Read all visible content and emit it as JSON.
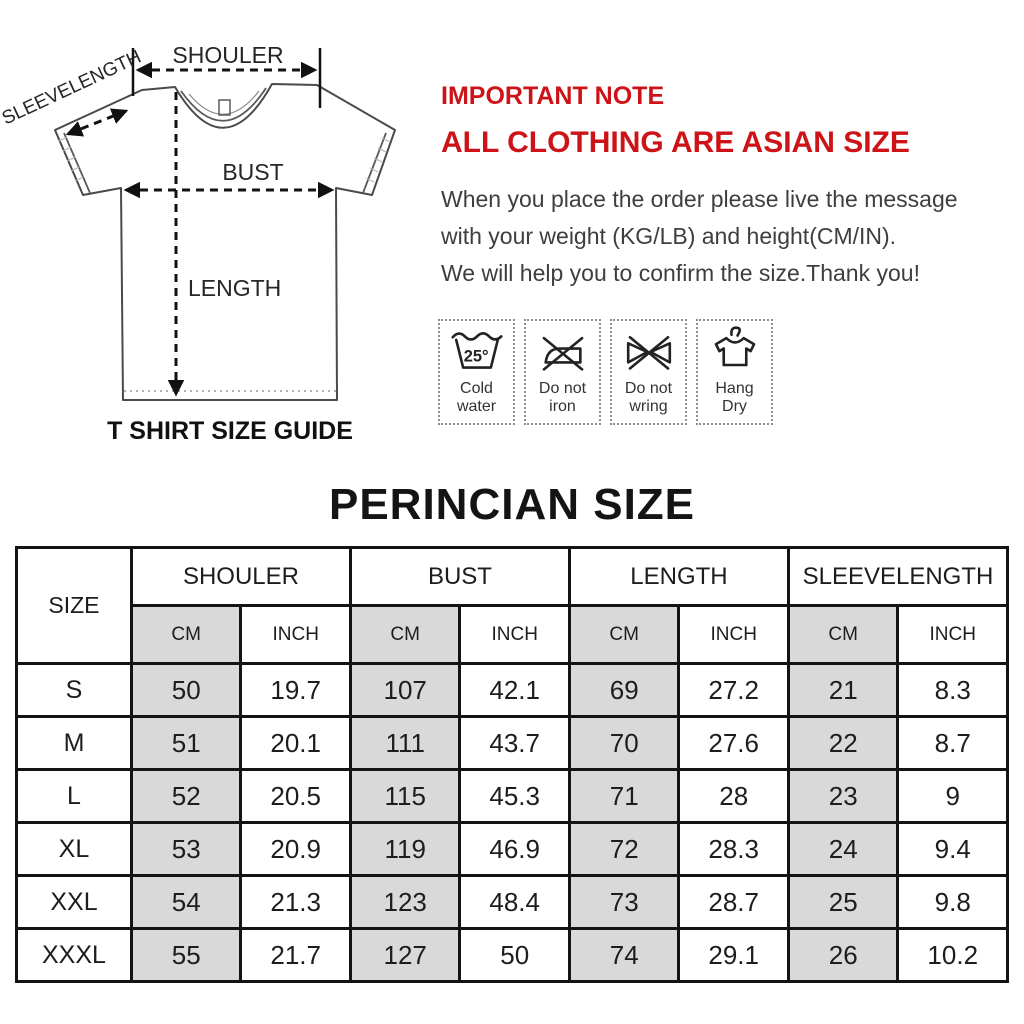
{
  "colors": {
    "accent_red": "#ce1318",
    "table_cell_gray": "#d9d9d9",
    "ink": "#141414",
    "body_text_gray": "#3e3e3e"
  },
  "diagram": {
    "labels": {
      "shoulder": "SHOULER",
      "sleevelength": "SLEEVELENGTH",
      "bust": "BUST",
      "length": "LENGTH"
    },
    "caption": "T SHIRT SIZE GUIDE"
  },
  "note": {
    "heading": "IMPORTANT NOTE",
    "subheading": "ALL CLOTHING ARE ASIAN SIZE",
    "lines": [
      "When you place the order please live the message",
      "with your weight (KG/LB) and height(CM/IN).",
      "We will help you to confirm the size.Thank you!"
    ]
  },
  "care": {
    "items": [
      {
        "icon": "cold-water-wash-icon",
        "temp": "25°",
        "label": [
          "Cold",
          "water"
        ]
      },
      {
        "icon": "do-not-iron-icon",
        "label": [
          "Do not",
          "iron"
        ]
      },
      {
        "icon": "do-not-wring-icon",
        "label": [
          "Do not",
          "wring"
        ]
      },
      {
        "icon": "hang-dry-icon",
        "label": [
          "Hang",
          "Dry"
        ]
      }
    ]
  },
  "table": {
    "title": "PERINCIAN SIZE",
    "size_header": "SIZE",
    "groups": [
      "SHOULER",
      "BUST",
      "LENGTH",
      "SLEEVELENGTH"
    ],
    "unit_headers": [
      "CM",
      "INCH"
    ],
    "rows": [
      {
        "size": "S",
        "values": [
          "50",
          "19.7",
          "107",
          "42.1",
          "69",
          "27.2",
          "21",
          "8.3"
        ]
      },
      {
        "size": "M",
        "values": [
          "51",
          "20.1",
          "111",
          "43.7",
          "70",
          "27.6",
          "22",
          "8.7"
        ]
      },
      {
        "size": "L",
        "values": [
          "52",
          "20.5",
          "115",
          "45.3",
          "71",
          "28",
          "23",
          "9"
        ]
      },
      {
        "size": "XL",
        "values": [
          "53",
          "20.9",
          "119",
          "46.9",
          "72",
          "28.3",
          "24",
          "9.4"
        ]
      },
      {
        "size": "XXL",
        "values": [
          "54",
          "21.3",
          "123",
          "48.4",
          "73",
          "28.7",
          "25",
          "9.8"
        ]
      },
      {
        "size": "XXXL",
        "values": [
          "55",
          "21.7",
          "127",
          "50",
          "74",
          "29.1",
          "26",
          "10.2"
        ]
      }
    ]
  }
}
